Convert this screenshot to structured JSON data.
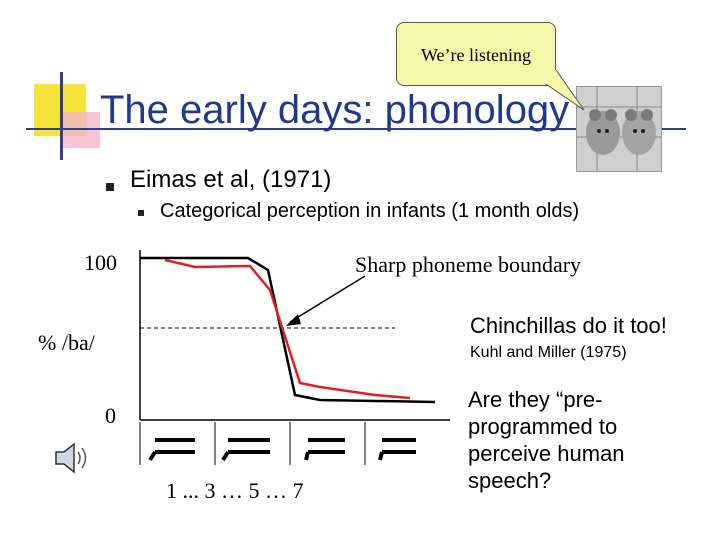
{
  "slide": {
    "title": "The early days: phonology",
    "bubble_text": "We’re listening",
    "bullets": [
      {
        "text": "Eimas et al, (1971)"
      },
      {
        "text": "Categorical perception in infants (1 month olds)"
      }
    ],
    "figure": {
      "y_top": "100",
      "y_mid": "% /ba/",
      "y_bottom": "0",
      "x_ticks": "1 ...   3  …  5  …   7",
      "annotation": "Sharp phoneme boundary"
    },
    "chinchilla": {
      "headline": "Chinchillas do it too!",
      "citation": "Kuhl and Miller (1975)"
    },
    "question": "Are they “pre-programmed to perceive human speech?",
    "icons": {
      "speaker": "speaker-icon",
      "photo": "chinchilla-photo"
    },
    "colors": {
      "title": "#1f3a8a",
      "bubble": "#f6f7a8",
      "red_curve": "#e02020",
      "black_curve": "#000000"
    }
  }
}
